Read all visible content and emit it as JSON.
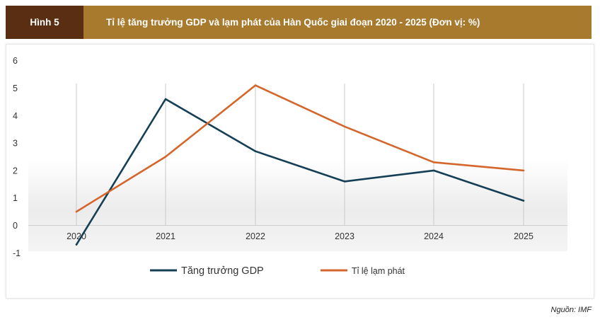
{
  "header": {
    "figure_label": "Hình 5",
    "title": "Tỉ lệ tăng trưởng GDP và lạm phát của Hàn Quốc giai đoạn 2020 - 2025 (Đơn vị: %)"
  },
  "source": "Nguồn: IMF",
  "colors": {
    "header_bg": "#a87a2d",
    "tag_bg": "#5a2e12",
    "gdp": "#143f55",
    "inflation": "#d4662c"
  },
  "chart_data": {
    "type": "line",
    "x": [
      "2020",
      "2021",
      "2022",
      "2023",
      "2024",
      "2025"
    ],
    "series": [
      {
        "name": "Tăng trưởng GDP",
        "values": [
          -0.7,
          4.6,
          2.7,
          1.6,
          2.0,
          0.9
        ],
        "color": "#143f55"
      },
      {
        "name": "Tỉ lệ lạm phát",
        "values": [
          0.5,
          2.5,
          5.1,
          3.6,
          2.3,
          2.0
        ],
        "color": "#d4662c"
      }
    ],
    "yticks": [
      "6",
      "5",
      "4",
      "3",
      "2",
      "1",
      "0",
      "-1"
    ],
    "ylim": [
      -1,
      6
    ],
    "grid": "vertical",
    "legend": "bottom"
  }
}
